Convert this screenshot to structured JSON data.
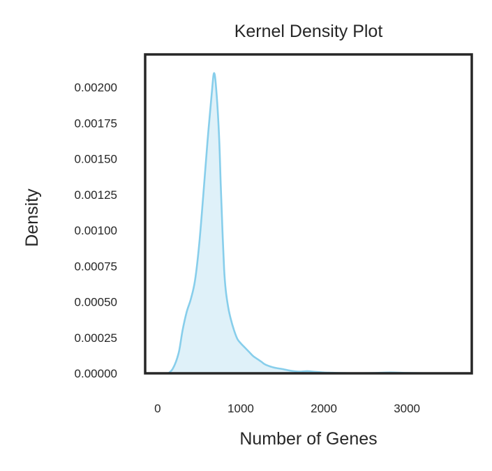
{
  "chart_data": {
    "type": "area",
    "title": "Kernel Density Plot",
    "xlabel": "Number of Genes",
    "ylabel": "Density",
    "xlim": [
      -150,
      3780
    ],
    "ylim": [
      0,
      0.00223
    ],
    "xticks": [
      0,
      1000,
      2000,
      3000
    ],
    "xtick_labels": [
      "0",
      "1000",
      "2000",
      "3000"
    ],
    "yticks": [
      0,
      0.00025,
      0.0005,
      0.00075,
      0.001,
      0.00125,
      0.0015,
      0.00175,
      0.002
    ],
    "ytick_labels": [
      "0.00000",
      "0.00025",
      "0.00050",
      "0.00075",
      "0.00100",
      "0.00125",
      "0.00150",
      "0.00175",
      "0.00200"
    ],
    "grid": false,
    "legend": "none",
    "series": [
      {
        "x": [
          130,
          150,
          180,
          220,
          260,
          300,
          350,
          400,
          450,
          500,
          550,
          600,
          650,
          680,
          710,
          740,
          760,
          780,
          800,
          820,
          850,
          880,
          920,
          960,
          1000,
          1050,
          1100,
          1150,
          1200,
          1250,
          1300,
          1400,
          1500,
          1600,
          1700,
          1800,
          1900,
          2000,
          2100,
          2200,
          2400,
          2600,
          2800,
          3000,
          3200,
          3400,
          3500
        ],
        "values": [
          0,
          1e-05,
          3e-05,
          8e-05,
          0.00016,
          0.0003,
          0.00043,
          0.00052,
          0.00065,
          0.0009,
          0.00125,
          0.00162,
          0.00195,
          0.0021,
          0.00195,
          0.00165,
          0.00131,
          0.001,
          0.00073,
          0.00058,
          0.00046,
          0.00038,
          0.0003,
          0.00024,
          0.00021,
          0.00018,
          0.00015,
          0.00012,
          0.0001,
          8e-05,
          6e-05,
          4e-05,
          3e-05,
          1.8e-05,
          1.2e-05,
          1.5e-05,
          1e-05,
          6e-06,
          4e-06,
          2e-06,
          1e-06,
          2e-06,
          6e-06,
          3e-06,
          1e-06,
          1e-06,
          0
        ],
        "line_color": "#87CEEB",
        "fill_color": "#DFF1F9"
      }
    ]
  }
}
